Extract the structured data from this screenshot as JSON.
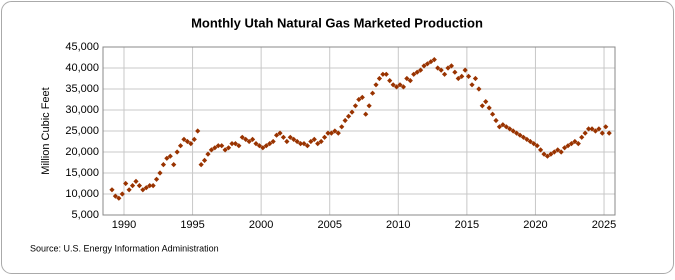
{
  "chart_data": {
    "type": "scatter",
    "title": "Monthly Utah Natural Gas Marketed Production",
    "y_label": "Million Cubic Feet",
    "source": "Source: U.S. Energy Information Administration",
    "xlim": [
      1988.47,
      2025.8
    ],
    "xticks": [
      1990,
      1995,
      2000,
      2005,
      2010,
      2015,
      2020,
      2025
    ],
    "ylim": [
      5000,
      45000
    ],
    "yticks": [
      {
        "value": 5000,
        "label": "5,000"
      },
      {
        "value": 10000,
        "label": "10,000"
      },
      {
        "value": 15000,
        "label": "15,000"
      },
      {
        "value": 20000,
        "label": "20,000"
      },
      {
        "value": 25000,
        "label": "25,000"
      },
      {
        "value": 30000,
        "label": "30,000"
      },
      {
        "value": 35000,
        "label": "35,000"
      },
      {
        "value": 40000,
        "label": "40,000"
      },
      {
        "value": 45000,
        "label": "45,000"
      }
    ],
    "grid": true,
    "color": "#993300",
    "x": [
      1989.125,
      1989.375,
      1989.625,
      1989.875,
      1990.125,
      1990.375,
      1990.625,
      1990.875,
      1991.125,
      1991.375,
      1991.625,
      1991.875,
      1992.125,
      1992.375,
      1992.625,
      1992.875,
      1993.125,
      1993.375,
      1993.625,
      1993.875,
      1994.125,
      1994.375,
      1994.625,
      1994.875,
      1995.125,
      1995.375,
      1995.625,
      1995.875,
      1996.125,
      1996.375,
      1996.625,
      1996.875,
      1997.125,
      1997.375,
      1997.625,
      1997.875,
      1998.125,
      1998.375,
      1998.625,
      1998.875,
      1999.125,
      1999.375,
      1999.625,
      1999.875,
      2000.125,
      2000.375,
      2000.625,
      2000.875,
      2001.125,
      2001.375,
      2001.625,
      2001.875,
      2002.125,
      2002.375,
      2002.625,
      2002.875,
      2003.125,
      2003.375,
      2003.625,
      2003.875,
      2004.125,
      2004.375,
      2004.625,
      2004.875,
      2005.125,
      2005.375,
      2005.625,
      2005.875,
      2006.125,
      2006.375,
      2006.625,
      2006.875,
      2007.125,
      2007.375,
      2007.625,
      2007.875,
      2008.125,
      2008.375,
      2008.625,
      2008.875,
      2009.125,
      2009.375,
      2009.625,
      2009.875,
      2010.125,
      2010.375,
      2010.625,
      2010.875,
      2011.125,
      2011.375,
      2011.625,
      2011.875,
      2012.125,
      2012.375,
      2012.625,
      2012.875,
      2013.125,
      2013.375,
      2013.625,
      2013.875,
      2014.125,
      2014.375,
      2014.625,
      2014.875,
      2015.125,
      2015.375,
      2015.625,
      2015.875,
      2016.125,
      2016.375,
      2016.625,
      2016.875,
      2017.125,
      2017.375,
      2017.625,
      2017.875,
      2018.125,
      2018.375,
      2018.625,
      2018.875,
      2019.125,
      2019.375,
      2019.625,
      2019.875,
      2020.125,
      2020.375,
      2020.625,
      2020.875,
      2021.125,
      2021.375,
      2021.625,
      2021.875,
      2022.125,
      2022.375,
      2022.625,
      2022.875,
      2023.125,
      2023.375,
      2023.625,
      2023.875,
      2024.125,
      2024.375,
      2024.625,
      2024.875,
      2025.125,
      2025.375
    ],
    "values": [
      11000,
      9500,
      9000,
      10000,
      12500,
      11000,
      12000,
      13000,
      12000,
      11000,
      11500,
      12000,
      12000,
      13500,
      15000,
      17000,
      18500,
      19000,
      17000,
      20000,
      21500,
      23000,
      22500,
      22000,
      23000,
      25000,
      17000,
      18000,
      19500,
      20500,
      21000,
      21500,
      21500,
      20500,
      21000,
      22000,
      22000,
      21500,
      23500,
      23000,
      22500,
      23000,
      22000,
      21500,
      21000,
      21500,
      22000,
      22500,
      24000,
      24500,
      23500,
      22500,
      23500,
      23000,
      22500,
      22000,
      22000,
      21500,
      22500,
      23000,
      22000,
      22500,
      23500,
      24500,
      24500,
      25000,
      24500,
      26000,
      27500,
      28500,
      29500,
      31000,
      32500,
      33000,
      29000,
      31000,
      34000,
      36000,
      37500,
      38500,
      38500,
      37000,
      36000,
      35500,
      36000,
      35500,
      37500,
      37000,
      38500,
      39000,
      39500,
      40500,
      41000,
      41500,
      42000,
      40000,
      39500,
      38500,
      40000,
      40500,
      39000,
      37500,
      38000,
      39500,
      38000,
      36000,
      37500,
      35000,
      31000,
      32000,
      30500,
      29000,
      27500,
      26000,
      26500,
      26000,
      25500,
      25000,
      24500,
      24000,
      23500,
      23000,
      22500,
      22000,
      21500,
      20500,
      19500,
      19000,
      19500,
      20000,
      20500,
      20000,
      21000,
      21500,
      22000,
      22500,
      22000,
      23500,
      24500,
      25500,
      25500,
      25000,
      25500,
      24500,
      26000,
      24500
    ]
  }
}
